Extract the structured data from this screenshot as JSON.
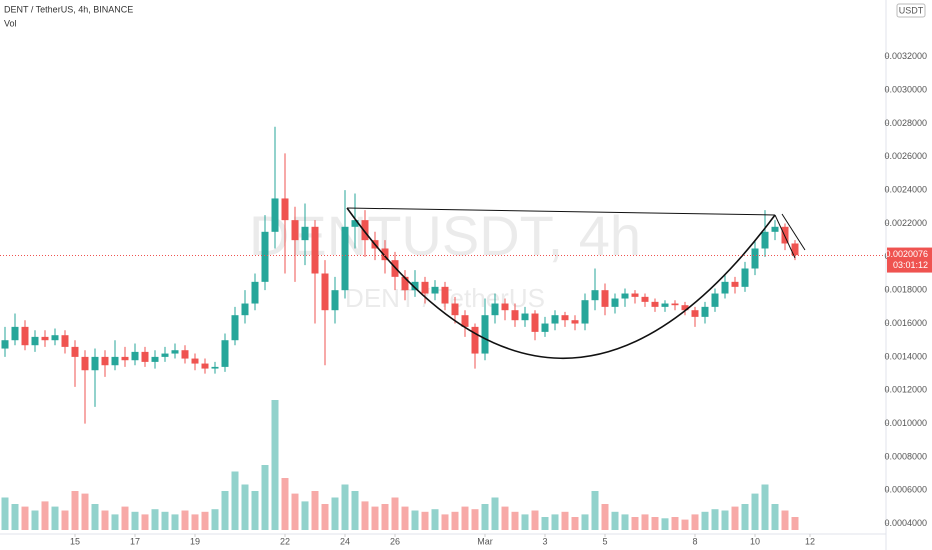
{
  "chart_data": {
    "type": "candlestick",
    "title": "DENT / TetherUS, 4h, BINANCE",
    "volume_label": "Vol",
    "watermark": "DENTUSDT, 4h",
    "watermark_subtitle": "DENT / TetherUS",
    "currency": "USDT",
    "up_color": "#26a69a",
    "down_color": "#ef5350",
    "grid": false,
    "open": [
      0.00145,
      0.0015,
      0.00158,
      0.00147,
      0.00152,
      0.0015,
      0.00153,
      0.00146,
      0.0014,
      0.00132,
      0.0014,
      0.00135,
      0.0014,
      0.00138,
      0.00143,
      0.00137,
      0.0014,
      0.00142,
      0.00144,
      0.00139,
      0.00136,
      0.00133,
      0.00134,
      0.0015,
      0.00165,
      0.00172,
      0.00185,
      0.00215,
      0.00235,
      0.00222,
      0.0021,
      0.00218,
      0.0019,
      0.00168,
      0.0018,
      0.00218,
      0.00222,
      0.0021,
      0.00205,
      0.00198,
      0.00188,
      0.0018,
      0.00185,
      0.00178,
      0.00182,
      0.00172,
      0.00165,
      0.00158,
      0.00142,
      0.00165,
      0.00172,
      0.00168,
      0.00162,
      0.00166,
      0.00155,
      0.0016,
      0.00165,
      0.00162,
      0.0016,
      0.00174,
      0.0018,
      0.0017,
      0.00175,
      0.00178,
      0.00176,
      0.00173,
      0.0017,
      0.00172,
      0.00171,
      0.00168,
      0.00164,
      0.0017,
      0.00178,
      0.00185,
      0.00182,
      0.00193,
      0.00205,
      0.00215,
      0.00218,
      0.00208
    ],
    "high": [
      0.00158,
      0.00166,
      0.00162,
      0.00156,
      0.00156,
      0.00157,
      0.00156,
      0.0015,
      0.00144,
      0.00145,
      0.00144,
      0.0015,
      0.00146,
      0.00148,
      0.00146,
      0.00144,
      0.00146,
      0.00148,
      0.00147,
      0.00142,
      0.00139,
      0.00137,
      0.00154,
      0.0017,
      0.0018,
      0.0019,
      0.00225,
      0.00278,
      0.00262,
      0.0023,
      0.00232,
      0.00222,
      0.00198,
      0.00188,
      0.0024,
      0.00238,
      0.00228,
      0.00215,
      0.0021,
      0.00203,
      0.00192,
      0.00192,
      0.00188,
      0.00186,
      0.00185,
      0.00176,
      0.00168,
      0.0016,
      0.00175,
      0.00178,
      0.00175,
      0.00172,
      0.0017,
      0.00168,
      0.00164,
      0.00168,
      0.00167,
      0.00165,
      0.00178,
      0.00193,
      0.00184,
      0.00178,
      0.00181,
      0.0018,
      0.00178,
      0.00175,
      0.00174,
      0.00174,
      0.00173,
      0.0017,
      0.00173,
      0.00181,
      0.00189,
      0.00188,
      0.00197,
      0.0021,
      0.00228,
      0.00222,
      0.0022,
      0.0021
    ],
    "low": [
      0.0014,
      0.00147,
      0.00144,
      0.00143,
      0.00146,
      0.00147,
      0.00142,
      0.00122,
      0.001,
      0.0011,
      0.00128,
      0.00132,
      0.00134,
      0.00135,
      0.00134,
      0.00133,
      0.00137,
      0.00139,
      0.00136,
      0.00132,
      0.0013,
      0.0013,
      0.00131,
      0.00147,
      0.0016,
      0.00168,
      0.0018,
      0.00205,
      0.0019,
      0.00185,
      0.00195,
      0.0016,
      0.00135,
      0.0016,
      0.00175,
      0.00205,
      0.002,
      0.00198,
      0.0019,
      0.0018,
      0.00174,
      0.00176,
      0.00172,
      0.00174,
      0.00168,
      0.0016,
      0.00152,
      0.00133,
      0.00138,
      0.0016,
      0.00162,
      0.00158,
      0.00158,
      0.0015,
      0.00152,
      0.00156,
      0.00158,
      0.00156,
      0.00156,
      0.00168,
      0.00165,
      0.00166,
      0.0017,
      0.00172,
      0.0017,
      0.00167,
      0.00167,
      0.00168,
      0.00165,
      0.00158,
      0.0016,
      0.00167,
      0.00175,
      0.00178,
      0.00179,
      0.00189,
      0.002,
      0.0021,
      0.00204,
      0.00198
    ],
    "close": [
      0.0015,
      0.00158,
      0.00147,
      0.00152,
      0.0015,
      0.00153,
      0.00146,
      0.0014,
      0.00132,
      0.0014,
      0.00135,
      0.0014,
      0.00138,
      0.00143,
      0.00137,
      0.0014,
      0.00142,
      0.00144,
      0.00139,
      0.00136,
      0.00133,
      0.00134,
      0.0015,
      0.00165,
      0.00172,
      0.00185,
      0.00215,
      0.00235,
      0.00222,
      0.0021,
      0.00218,
      0.0019,
      0.00168,
      0.0018,
      0.00218,
      0.00222,
      0.0021,
      0.00205,
      0.00198,
      0.00188,
      0.0018,
      0.00185,
      0.00178,
      0.00182,
      0.00172,
      0.00165,
      0.00158,
      0.00142,
      0.00165,
      0.00172,
      0.00168,
      0.00162,
      0.00166,
      0.00155,
      0.0016,
      0.00165,
      0.00162,
      0.0016,
      0.00174,
      0.0018,
      0.0017,
      0.00175,
      0.00178,
      0.00176,
      0.00173,
      0.0017,
      0.00172,
      0.00171,
      0.00168,
      0.00164,
      0.0017,
      0.00178,
      0.00185,
      0.00182,
      0.00193,
      0.00205,
      0.00215,
      0.00218,
      0.00208,
      0.00201
    ],
    "volume": [
      25,
      20,
      18,
      15,
      22,
      18,
      15,
      30,
      28,
      20,
      15,
      12,
      18,
      14,
      12,
      16,
      14,
      12,
      15,
      12,
      14,
      16,
      30,
      45,
      35,
      30,
      50,
      100,
      40,
      28,
      22,
      30,
      20,
      25,
      35,
      30,
      22,
      18,
      20,
      25,
      18,
      15,
      14,
      16,
      12,
      14,
      18,
      16,
      20,
      25,
      18,
      14,
      12,
      15,
      10,
      12,
      14,
      10,
      12,
      30,
      20,
      14,
      12,
      10,
      12,
      10,
      9,
      10,
      8,
      12,
      14,
      16,
      15,
      18,
      20,
      28,
      35,
      20,
      15,
      10
    ],
    "xlim": [
      -0.5,
      88
    ],
    "xticks": [
      {
        "value": 7,
        "label": "15"
      },
      {
        "value": 13,
        "label": "17"
      },
      {
        "value": 19,
        "label": "19"
      },
      {
        "value": 28,
        "label": "22"
      },
      {
        "value": 34,
        "label": "24"
      },
      {
        "value": 39,
        "label": "26"
      },
      {
        "value": 48,
        "label": "Mar"
      },
      {
        "value": 54,
        "label": "3"
      },
      {
        "value": 60,
        "label": "5"
      },
      {
        "value": 69,
        "label": "8"
      },
      {
        "value": 75,
        "label": "10"
      },
      {
        "value": 80.5,
        "label": "12"
      }
    ],
    "ylim": [
      0.00035,
      0.00354
    ],
    "yticks": [
      {
        "value": 0.0004,
        "label": "0.0004000"
      },
      {
        "value": 0.0006,
        "label": "0.0006000"
      },
      {
        "value": 0.0008,
        "label": "0.0008000"
      },
      {
        "value": 0.001,
        "label": "0.0010000"
      },
      {
        "value": 0.0012,
        "label": "0.0012000"
      },
      {
        "value": 0.0014,
        "label": "0.0014000"
      },
      {
        "value": 0.0016,
        "label": "0.0016000"
      },
      {
        "value": 0.0018,
        "label": "0.0018000"
      },
      {
        "value": 0.002,
        "label": "0.0020000"
      },
      {
        "value": 0.0022,
        "label": "0.0022000"
      },
      {
        "value": 0.0024,
        "label": "0.0024000"
      },
      {
        "value": 0.0026,
        "label": "0.0026000"
      },
      {
        "value": 0.0028,
        "label": "0.0028000"
      },
      {
        "value": 0.003,
        "label": "0.0030000"
      },
      {
        "value": 0.0032,
        "label": "0.0032000"
      }
    ],
    "last_price": 0.0020076,
    "countdown": "03:01:12"
  }
}
